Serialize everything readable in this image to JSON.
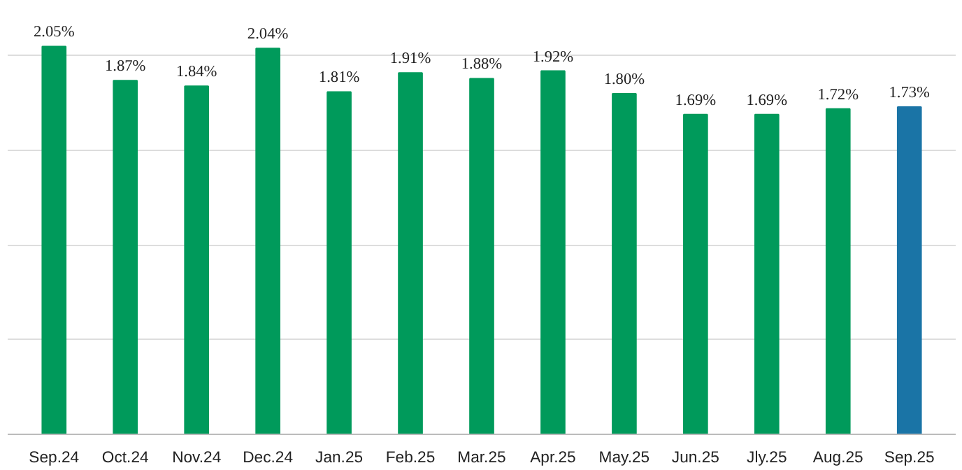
{
  "chart_data": {
    "type": "bar",
    "categories": [
      "Sep.24",
      "Oct.24",
      "Nov.24",
      "Dec.24",
      "Jan.25",
      "Feb.25",
      "Mar.25",
      "Apr.25",
      "May.25",
      "Jun.25",
      "Jly.25",
      "Aug.25",
      "Sep.25"
    ],
    "values": [
      2.05,
      1.87,
      1.84,
      2.04,
      1.81,
      1.91,
      1.88,
      1.92,
      1.8,
      1.69,
      1.69,
      1.72,
      1.73
    ],
    "value_labels": [
      "2.05%",
      "1.87%",
      "1.84%",
      "2.04%",
      "1.81%",
      "1.91%",
      "1.88%",
      "1.92%",
      "1.80%",
      "1.69%",
      "1.69%",
      "1.72%",
      "1.73%"
    ],
    "colors": [
      "#009a5b",
      "#009a5b",
      "#009a5b",
      "#009a5b",
      "#009a5b",
      "#009a5b",
      "#009a5b",
      "#009a5b",
      "#009a5b",
      "#009a5b",
      "#009a5b",
      "#009a5b",
      "#1a74a6"
    ],
    "grid": "y",
    "tick_labels": "x"
  }
}
